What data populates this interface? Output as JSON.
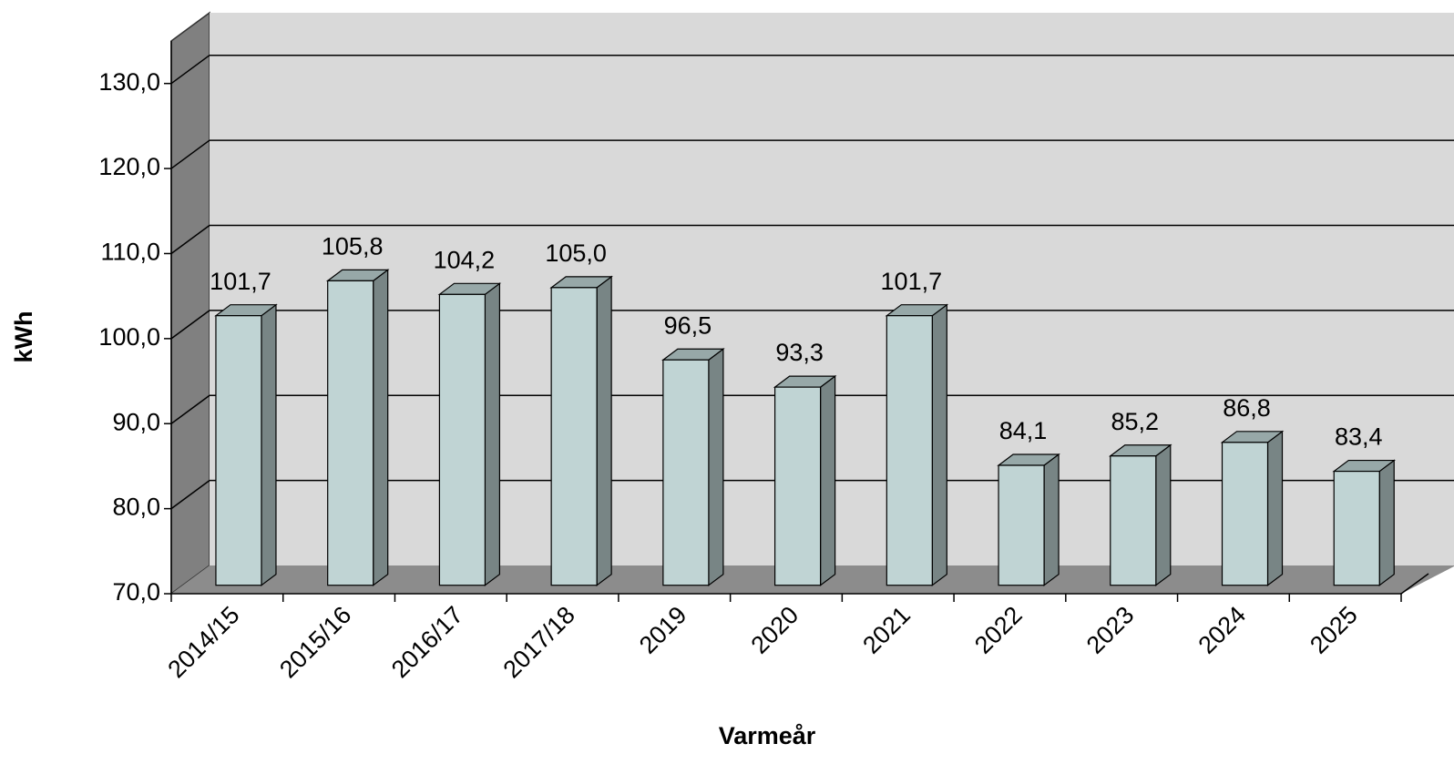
{
  "chart_data": {
    "type": "bar3d",
    "x_label": "Varmeår",
    "y_label": "kWh",
    "categories": [
      "2014/15",
      "2015/16",
      "2016/17",
      "2017/18",
      "2019",
      "2020",
      "2021",
      "2022",
      "2023",
      "2024",
      "2025"
    ],
    "values": [
      101.7,
      105.8,
      104.2,
      105.0,
      96.5,
      93.3,
      101.7,
      84.1,
      85.2,
      86.8,
      83.4
    ],
    "value_labels": [
      "101,7",
      "105,8",
      "104,2",
      "105,0",
      "96,5",
      "93,3",
      "101,7",
      "84,1",
      "85,2",
      "86,8",
      "83,4"
    ],
    "color": "#c0d4d4",
    "ylim": [
      70,
      135
    ],
    "yticks": [
      {
        "value": 70,
        "label": "70,0"
      },
      {
        "value": 80,
        "label": "80,0"
      },
      {
        "value": 90,
        "label": "90,0"
      },
      {
        "value": 100,
        "label": "100,0"
      },
      {
        "value": 110,
        "label": "110,0"
      },
      {
        "value": 120,
        "label": "120,0"
      },
      {
        "value": 130,
        "label": "130,0"
      }
    ],
    "grid": true
  }
}
